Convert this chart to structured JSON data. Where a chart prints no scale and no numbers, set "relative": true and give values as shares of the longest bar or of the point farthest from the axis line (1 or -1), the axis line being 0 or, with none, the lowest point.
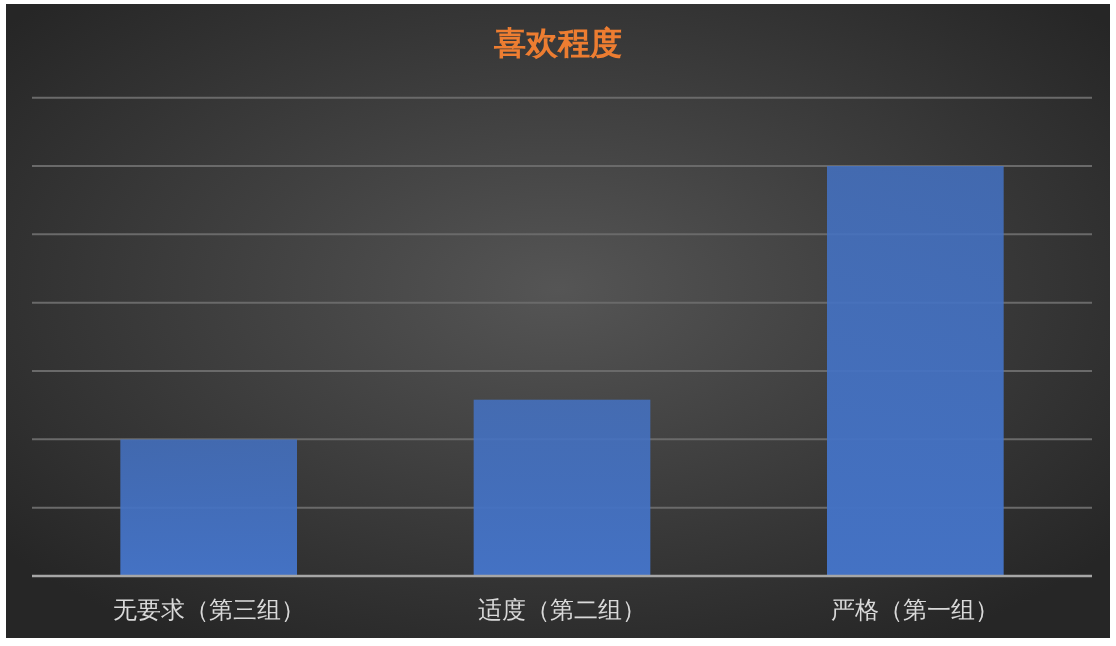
{
  "chart_data": {
    "type": "bar",
    "title": "喜欢程度",
    "relative": true,
    "categories": [
      "无要求（第三组）",
      "适度（第二组）",
      "严格（第一组）"
    ],
    "values": [
      0.333,
      0.43,
      1
    ],
    "color": "#4472c4",
    "grid": "y"
  }
}
